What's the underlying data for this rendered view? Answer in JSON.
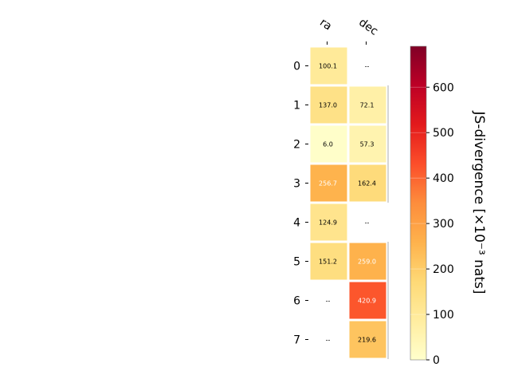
{
  "chart_data": {
    "type": "heatmap",
    "columns": [
      "ra",
      "dec"
    ],
    "rows": [
      "0",
      "1",
      "2",
      "3",
      "4",
      "5",
      "6",
      "7"
    ],
    "values": [
      [
        100.1,
        null
      ],
      [
        137.0,
        72.1
      ],
      [
        6.0,
        57.3
      ],
      [
        256.7,
        162.4
      ],
      [
        124.9,
        null
      ],
      [
        151.2,
        259.0
      ],
      [
        null,
        420.9
      ],
      [
        null,
        219.6
      ]
    ],
    "cell_labels": [
      [
        "100.1",
        "--"
      ],
      [
        "137.0",
        "72.1"
      ],
      [
        "6.0",
        "57.3"
      ],
      [
        "256.7",
        "162.4"
      ],
      [
        "124.9",
        "--"
      ],
      [
        "151.2",
        "259.0"
      ],
      [
        "--",
        "420.9"
      ],
      [
        "--",
        "219.6"
      ]
    ],
    "missing_label": "--",
    "colorbar": {
      "label": "JS-divergence [×10⁻³ nats]",
      "range": [
        0,
        690
      ],
      "ticks": [
        0,
        100,
        200,
        300,
        400,
        500,
        600
      ],
      "tick_labels": [
        "0",
        "100",
        "200",
        "300",
        "400",
        "500",
        "600"
      ],
      "colormap": "YlOrRd"
    },
    "colors": {
      "ylorrd": [
        "#ffffcc",
        "#ffeda0",
        "#fed976",
        "#feb24c",
        "#fd8d3c",
        "#fc4e2a",
        "#e31a1c",
        "#bd0026",
        "#800026"
      ],
      "cell_border": "#ffffff",
      "light_text_threshold": 250
    }
  }
}
